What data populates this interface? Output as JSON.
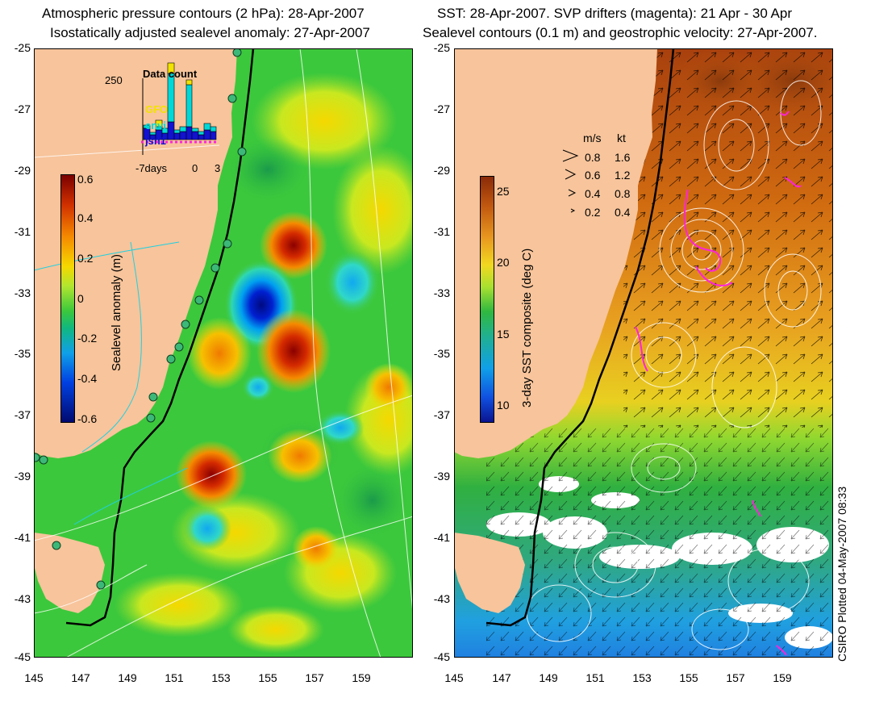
{
  "left": {
    "title_line1": "Atmospheric pressure contours (2 hPa): 28-Apr-2007",
    "title_line2": "Isostatically adjusted sealevel anomaly: 27-Apr-2007",
    "colorbar_title": "Sealevel anomaly (m)",
    "colorbar_ticks": [
      "0.6",
      "0.4",
      "0.2",
      "0",
      "-0.2",
      "-0.4",
      "-0.6"
    ],
    "inset": {
      "title": "Data count",
      "ymax_label": "250",
      "series": [
        {
          "name": "GFO",
          "color": "#f2e300"
        },
        {
          "name": "envi",
          "color": "#00d8d8"
        },
        {
          "name": "jsn1",
          "color": "#1212d0"
        }
      ],
      "x_labels": [
        "-7days",
        "0",
        "3"
      ]
    }
  },
  "right": {
    "title_line1": "SST: 28-Apr-2007. SVP drifters (magenta): 21 Apr - 30 Apr",
    "title_line2": "Sealevel contours (0.1 m) and geostrophic velocity: 27-Apr-2007.",
    "colorbar_title": "3-day SST composite (deg C)",
    "colorbar_ticks": [
      "25",
      "20",
      "15",
      "10"
    ],
    "velocity_legend": {
      "header_ms": "m/s",
      "header_kt": "kt",
      "rows": [
        {
          "ms": "0.8",
          "kt": "1.6"
        },
        {
          "ms": "0.6",
          "kt": "1.2"
        },
        {
          "ms": "0.4",
          "kt": "0.8"
        },
        {
          "ms": "0.2",
          "kt": "0.4"
        }
      ]
    }
  },
  "axes": {
    "y_labels": [
      "-25",
      "-27",
      "-29",
      "-31",
      "-33",
      "-35",
      "-37",
      "-39",
      "-41",
      "-43",
      "-45"
    ],
    "x_labels": [
      "145",
      "147",
      "149",
      "151",
      "153",
      "155",
      "157",
      "159"
    ]
  },
  "credit": "CSIRO Plotted 04-May-2007 08:33",
  "colors": {
    "land": "#f7c49b",
    "ocean_green": "#3cc83c",
    "drifter": "#ff22dd"
  }
}
